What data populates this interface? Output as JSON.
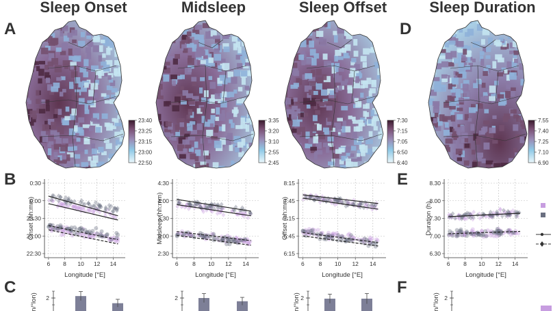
{
  "titles": [
    "Sleep Onset",
    "Midsleep",
    "Sleep Offset",
    "Sleep Duration"
  ],
  "panel_labels": {
    "A": "A",
    "B": "B",
    "C": "C",
    "D": "D",
    "E": "E",
    "F": "F"
  },
  "colors": {
    "purple": "#c79de0",
    "gray": "#6a6f80",
    "line": "#222222",
    "map_dark": "#4a2438",
    "map_mid": "#8e7aa6",
    "map_light": "#d6eef6"
  },
  "colorbars": [
    {
      "ticks": [
        "23:40",
        "23:25",
        "23:15",
        "23:00",
        "22:50"
      ]
    },
    {
      "ticks": [
        "3:35",
        "3:20",
        "3:10",
        "2:55",
        "2:45"
      ]
    },
    {
      "ticks": [
        "7:30",
        "7:15",
        "7:05",
        "6:50",
        "6:40"
      ]
    },
    {
      "ticks": [
        "7.55",
        "7.40",
        "7.25",
        "7.10",
        "6.90"
      ]
    }
  ],
  "chart_data": [
    {
      "type": "scatter",
      "xlabel": "Longitude [°E]",
      "ylabel": "Onset (hh:mm)",
      "xticks": [
        "6",
        "8",
        "10",
        "12",
        "14"
      ],
      "yticks": [
        "0:30",
        "0:00",
        "23:30",
        "23:00",
        "22:30"
      ],
      "xlim": [
        5.5,
        15.5
      ],
      "ylim": [
        22.3,
        24.7
      ],
      "clusters": [
        {
          "shape": "diamond",
          "color": "purple",
          "y_at_start": 24.0,
          "y_at_end": 23.55
        },
        {
          "shape": "diamond",
          "color": "gray",
          "y_at_start": 24.15,
          "y_at_end": 23.75
        },
        {
          "shape": "circle",
          "color": "purple",
          "y_at_start": 23.2,
          "y_at_end": 22.85
        },
        {
          "shape": "circle",
          "color": "gray",
          "y_at_start": 23.25,
          "y_at_end": 22.95
        }
      ],
      "lines": [
        {
          "style": "solid",
          "y_at_start": 24.18,
          "y_at_end": 23.58
        },
        {
          "style": "solid",
          "y_at_start": 23.95,
          "y_at_end": 23.45
        },
        {
          "style": "dashed",
          "y_at_start": 23.28,
          "y_at_end": 22.85
        },
        {
          "style": "dashed",
          "y_at_start": 23.15,
          "y_at_end": 22.72
        }
      ]
    },
    {
      "type": "scatter",
      "xlabel": "Longitude [°E]",
      "ylabel": "Midsleep (hh:mm)",
      "xticks": [
        "6",
        "8",
        "10",
        "12",
        "14"
      ],
      "yticks": [
        "4:30",
        "4:00",
        "3:30",
        "3:00",
        "2:30"
      ],
      "xlim": [
        5.5,
        15.5
      ],
      "ylim": [
        2.3,
        4.7
      ],
      "clusters": [
        {
          "shape": "diamond",
          "color": "purple",
          "y_at_start": 3.95,
          "y_at_end": 3.6
        },
        {
          "shape": "diamond",
          "color": "gray",
          "y_at_start": 4.0,
          "y_at_end": 3.7
        },
        {
          "shape": "circle",
          "color": "purple",
          "y_at_start": 3.05,
          "y_at_end": 2.8
        },
        {
          "shape": "circle",
          "color": "gray",
          "y_at_start": 3.05,
          "y_at_end": 2.75
        }
      ],
      "lines": [
        {
          "style": "solid",
          "y_at_start": 4.08,
          "y_at_end": 3.72
        },
        {
          "style": "solid",
          "y_at_start": 3.92,
          "y_at_end": 3.58
        },
        {
          "style": "dashed",
          "y_at_start": 3.1,
          "y_at_end": 2.82
        },
        {
          "style": "dashed",
          "y_at_start": 2.98,
          "y_at_end": 2.68
        }
      ]
    },
    {
      "type": "scatter",
      "xlabel": "Longitude [°E]",
      "ylabel": "Offset (hh:mm)",
      "xticks": [
        "6",
        "8",
        "10",
        "12",
        "14"
      ],
      "yticks": [
        "8:15",
        "7:45",
        "7:15",
        "6:45",
        "6:15"
      ],
      "xlim": [
        5.5,
        15.5
      ],
      "ylim": [
        6.1,
        8.45
      ],
      "clusters": [
        {
          "shape": "diamond",
          "color": "purple",
          "y_at_start": 7.95,
          "y_at_end": 7.6
        },
        {
          "shape": "diamond",
          "color": "gray",
          "y_at_start": 7.9,
          "y_at_end": 7.65
        },
        {
          "shape": "circle",
          "color": "purple",
          "y_at_start": 6.9,
          "y_at_end": 6.6
        },
        {
          "shape": "circle",
          "color": "gray",
          "y_at_start": 6.85,
          "y_at_end": 6.5
        }
      ],
      "lines": [
        {
          "style": "solid",
          "y_at_start": 7.98,
          "y_at_end": 7.72
        },
        {
          "style": "solid",
          "y_at_start": 7.88,
          "y_at_end": 7.55
        },
        {
          "style": "dashed",
          "y_at_start": 6.85,
          "y_at_end": 6.55
        },
        {
          "style": "dashed",
          "y_at_start": 6.75,
          "y_at_end": 6.45
        }
      ]
    },
    {
      "type": "scatter",
      "xlabel": "Longitude [°E]",
      "ylabel": "Duration (h)",
      "xticks": [
        "6",
        "8",
        "10",
        "12",
        "14"
      ],
      "yticks": [
        "8.30",
        "8.00",
        "7.30",
        "7.00",
        "6.30"
      ],
      "xlim": [
        5.5,
        15.5
      ],
      "ylim": [
        6.35,
        8.65
      ],
      "clusters": [
        {
          "shape": "diamond",
          "color": "purple",
          "y_at_start": 7.55,
          "y_at_end": 7.65
        },
        {
          "shape": "diamond",
          "color": "gray",
          "y_at_start": 7.55,
          "y_at_end": 7.65
        },
        {
          "shape": "circle",
          "color": "purple",
          "y_at_start": 7.05,
          "y_at_end": 7.1
        },
        {
          "shape": "circle",
          "color": "gray",
          "y_at_start": 7.05,
          "y_at_end": 7.1
        }
      ],
      "lines": [
        {
          "style": "solid",
          "y_at_start": 7.55,
          "y_at_end": 7.65
        },
        {
          "style": "dashed",
          "y_at_start": 7.05,
          "y_at_end": 7.12
        }
      ]
    },
    {
      "type": "bar",
      "ylabel_partial": "n/°lon)",
      "ytick_top": "2",
      "values": [
        2.15,
        1.6
      ],
      "errors": [
        0.35,
        0.3
      ]
    },
    {
      "type": "bar",
      "ytick_top": "2",
      "values": [
        2.0,
        1.75
      ],
      "errors": [
        0.35,
        0.3
      ]
    },
    {
      "type": "bar",
      "ylabel_partial": "n/°lon)",
      "ytick_top": "2",
      "values": [
        1.95,
        1.95
      ],
      "errors": [
        0.35,
        0.4
      ]
    },
    {
      "type": "bar",
      "ylabel_partial": "n/°lon)",
      "ytick_top": "2",
      "values": []
    }
  ]
}
